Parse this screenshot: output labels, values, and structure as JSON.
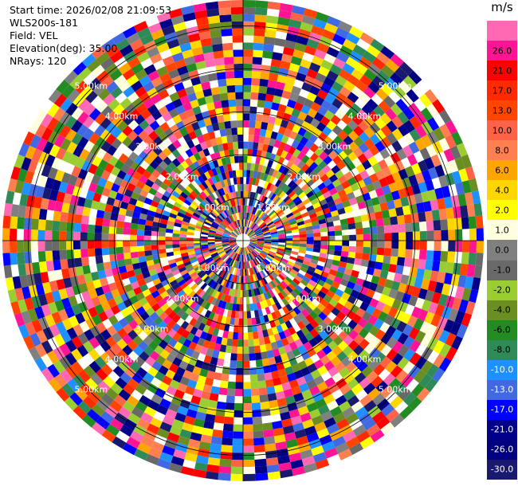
{
  "info": {
    "start_time": "Start time: 2026/02/08 21:09:53",
    "station": "WLS200s-181",
    "field": "Field: VEL",
    "elevation": "Elevation(deg): 35.00",
    "nrays": "NRays: 120"
  },
  "range_rings": {
    "labels": [
      "1.00km",
      "2.00km",
      "3.00km",
      "4.00km",
      "5.00km"
    ],
    "values_km": [
      1,
      2,
      3,
      4,
      5
    ]
  },
  "colorbar": {
    "unit": "m/s",
    "levels": [
      {
        "label": "26.0",
        "color": "#ff1493"
      },
      {
        "label": "21.0",
        "color": "#ff0000"
      },
      {
        "label": "17.0",
        "color": "#ff2a00"
      },
      {
        "label": "13.0",
        "color": "#ff4500"
      },
      {
        "label": "10.0",
        "color": "#ff6347"
      },
      {
        "label": "8.0",
        "color": "#ff7f50"
      },
      {
        "label": "6.0",
        "color": "#ffa500"
      },
      {
        "label": "4.0",
        "color": "#ffd700"
      },
      {
        "label": "2.0",
        "color": "#ffff00"
      },
      {
        "label": "1.0",
        "color": "#ffffe0"
      },
      {
        "label": "0.0",
        "color": "#808080"
      },
      {
        "label": "-1.0",
        "color": "#696969"
      },
      {
        "label": "-2.0",
        "color": "#9acd32"
      },
      {
        "label": "-4.0",
        "color": "#6b8e23"
      },
      {
        "label": "-6.0",
        "color": "#228b22"
      },
      {
        "label": "-8.0",
        "color": "#2e8b57"
      },
      {
        "label": "-10.0",
        "color": "#1e90ff"
      },
      {
        "label": "-13.0",
        "color": "#4169e1"
      },
      {
        "label": "-17.0",
        "color": "#0000ff"
      },
      {
        "label": "-21.0",
        "color": "#00008b"
      },
      {
        "label": "-26.0",
        "color": "#000080"
      },
      {
        "label": "-30.0",
        "color": "#191970"
      }
    ],
    "top_color": "#ff69b4"
  }
}
